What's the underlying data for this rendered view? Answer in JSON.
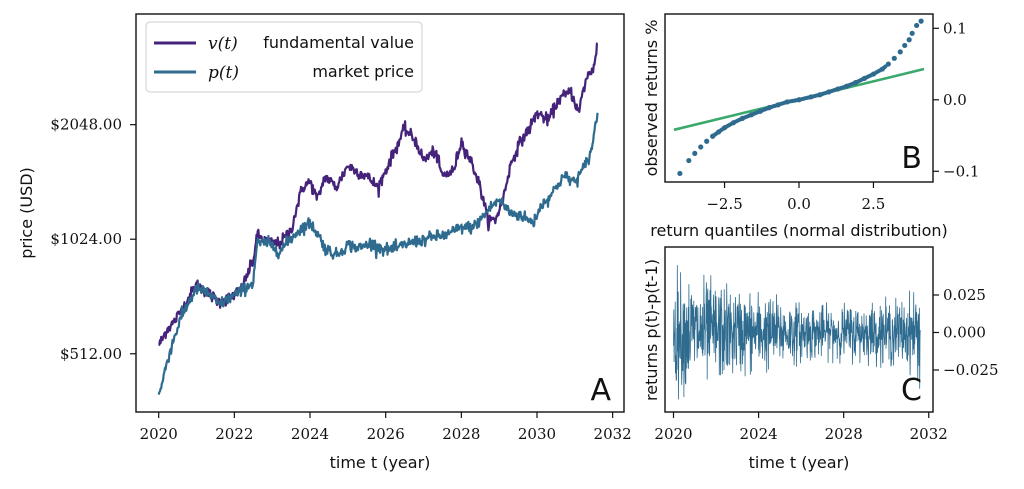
{
  "chart_data": [
    {
      "panel": "A",
      "type": "line",
      "xlabel": "time t (year)",
      "ylabel": "price (USD)",
      "xlim": [
        2019.4,
        2032.3
      ],
      "ylim": [
        360,
        4000
      ],
      "y_scale": "log2",
      "xticks": [
        2020,
        2022,
        2024,
        2026,
        2028,
        2030,
        2032
      ],
      "xtick_labels": [
        "2020",
        "2022",
        "2024",
        "2026",
        "2028",
        "2030",
        "2032"
      ],
      "yticks": [
        512,
        1024,
        2048
      ],
      "ytick_labels": [
        "$512.00",
        "$1024.00",
        "$2048.00"
      ],
      "legend_position": "upper-left",
      "series": [
        {
          "name": "fundamental value",
          "legend_math": "v(t)",
          "color": "#45237a",
          "x": [
            2020.0,
            2020.1,
            2020.2,
            2020.4,
            2020.7,
            2021.0,
            2021.3,
            2021.6,
            2021.9,
            2022.2,
            2022.5,
            2022.6,
            2022.9,
            2023.2,
            2023.5,
            2023.8,
            2024.0,
            2024.2,
            2024.4,
            2024.7,
            2025.0,
            2025.2,
            2025.5,
            2025.8,
            2026.0,
            2026.3,
            2026.5,
            2026.8,
            2027.0,
            2027.3,
            2027.5,
            2027.8,
            2028.0,
            2028.3,
            2028.5,
            2028.7,
            2028.9,
            2029.1,
            2029.3,
            2029.5,
            2029.8,
            2030.0,
            2030.3,
            2030.6,
            2030.9,
            2031.1,
            2031.3,
            2031.5,
            2031.6
          ],
          "y": [
            540,
            560,
            590,
            620,
            690,
            780,
            740,
            700,
            720,
            760,
            900,
            1050,
            1000,
            1000,
            1080,
            1400,
            1450,
            1300,
            1500,
            1400,
            1600,
            1550,
            1500,
            1400,
            1550,
            1800,
            2000,
            1850,
            1650,
            1750,
            1500,
            1550,
            1850,
            1600,
            1400,
            1150,
            1150,
            1300,
            1600,
            1800,
            2000,
            2200,
            2100,
            2400,
            2500,
            2200,
            2700,
            2900,
            3350
          ]
        },
        {
          "name": "market price",
          "legend_math": "p(t)",
          "color": "#2e6b8f",
          "x": [
            2020.0,
            2020.1,
            2020.2,
            2020.4,
            2020.6,
            2020.8,
            2021.0,
            2021.3,
            2021.6,
            2021.9,
            2022.2,
            2022.5,
            2022.6,
            2022.9,
            2023.2,
            2023.5,
            2023.8,
            2024.0,
            2024.2,
            2024.4,
            2024.7,
            2025.0,
            2025.3,
            2025.6,
            2026.0,
            2026.3,
            2026.6,
            2027.0,
            2027.3,
            2027.6,
            2028.0,
            2028.3,
            2028.5,
            2028.8,
            2029.0,
            2029.3,
            2029.6,
            2029.9,
            2030.1,
            2030.4,
            2030.7,
            2031.0,
            2031.2,
            2031.4,
            2031.5,
            2031.6
          ],
          "y": [
            400,
            430,
            480,
            560,
            640,
            700,
            760,
            740,
            690,
            720,
            750,
            790,
            1000,
            1000,
            950,
            1030,
            1100,
            1130,
            1060,
            970,
            930,
            990,
            970,
            1000,
            960,
            970,
            1000,
            1020,
            1040,
            1050,
            1100,
            1100,
            1150,
            1250,
            1300,
            1200,
            1180,
            1130,
            1250,
            1350,
            1500,
            1450,
            1550,
            1700,
            1900,
            2200
          ]
        }
      ]
    },
    {
      "panel": "B",
      "type": "scatter",
      "xlabel": "return quantiles (normal distribution)",
      "ylabel": "observed returns %",
      "xlim": [
        -4.5,
        4.5
      ],
      "ylim": [
        -0.115,
        0.12
      ],
      "y_axis_side": "right",
      "xticks": [
        -2.5,
        0.0,
        2.5
      ],
      "xtick_labels": [
        "−2.5",
        "0.0",
        "2.5"
      ],
      "yticks": [
        -0.1,
        0.0,
        0.1
      ],
      "ytick_labels": [
        "−0.1",
        "0.0",
        "0.1"
      ],
      "points_color": "#2e6b8f",
      "fit_line": {
        "color": "#3aa86b",
        "x": [
          -4.2,
          4.2
        ],
        "y": [
          -0.042,
          0.043
        ]
      },
      "series": [
        {
          "name": "",
          "points": [
            [
              -4.0,
              -0.103
            ],
            [
              -3.7,
              -0.085
            ],
            [
              -3.5,
              -0.075
            ],
            [
              -3.3,
              -0.066
            ],
            [
              -3.1,
              -0.058
            ],
            [
              -2.9,
              -0.051
            ],
            [
              -2.7,
              -0.045
            ],
            [
              -2.5,
              -0.039
            ],
            [
              -2.2,
              -0.032
            ],
            [
              -1.9,
              -0.026
            ],
            [
              -1.6,
              -0.021
            ],
            [
              -1.3,
              -0.016
            ],
            [
              -1.0,
              -0.011
            ],
            [
              -0.7,
              -0.007
            ],
            [
              -0.4,
              -0.003
            ],
            [
              0.0,
              0.0
            ],
            [
              0.4,
              0.004
            ],
            [
              0.7,
              0.007
            ],
            [
              1.0,
              0.011
            ],
            [
              1.3,
              0.015
            ],
            [
              1.6,
              0.019
            ],
            [
              1.9,
              0.024
            ],
            [
              2.2,
              0.03
            ],
            [
              2.5,
              0.036
            ],
            [
              2.8,
              0.043
            ],
            [
              3.0,
              0.05
            ],
            [
              3.2,
              0.058
            ],
            [
              3.4,
              0.067
            ],
            [
              3.55,
              0.076
            ],
            [
              3.7,
              0.084
            ],
            [
              3.8,
              0.093
            ],
            [
              3.95,
              0.104
            ],
            [
              4.1,
              0.11
            ]
          ]
        }
      ]
    },
    {
      "panel": "C",
      "type": "line",
      "xlabel": "time t (year)",
      "ylabel": "returns p(t)-p(t-1)",
      "xlim": [
        2019.6,
        2032.2
      ],
      "ylim": [
        -0.053,
        0.057
      ],
      "y_axis_side": "right",
      "xticks": [
        2020,
        2024,
        2028,
        2032
      ],
      "xtick_labels": [
        "2020",
        "2024",
        "2028",
        "2032"
      ],
      "yticks": [
        -0.025,
        0.0,
        0.025
      ],
      "ytick_labels": [
        "−0.025",
        "0.000",
        "0.025"
      ],
      "color": "#2e6b8f",
      "start_year": 2020.0,
      "end_year": 2031.6,
      "amplitude_envelope": {
        "x": [
          2020.0,
          2021.0,
          2022.0,
          2023.0,
          2024.0,
          2025.0,
          2026.0,
          2027.0,
          2028.0,
          2029.0,
          2030.0,
          2031.0,
          2031.6
        ],
        "y": [
          0.046,
          0.04,
          0.038,
          0.032,
          0.03,
          0.026,
          0.022,
          0.02,
          0.021,
          0.022,
          0.024,
          0.026,
          0.038
        ]
      }
    }
  ],
  "panels": {
    "a": "A",
    "b": "B",
    "c": "C"
  },
  "legend": {
    "v_math": "v(t)",
    "v_text": "fundamental value",
    "p_math": "p(t)",
    "p_text": "market price"
  }
}
